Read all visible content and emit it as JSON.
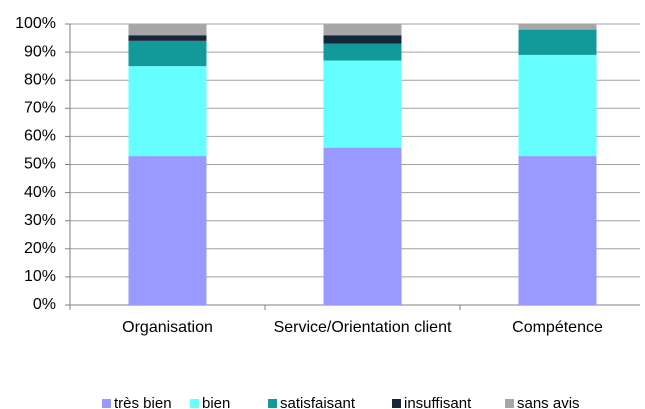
{
  "chart_data": {
    "type": "stacked_bar",
    "categories": [
      "Organisation",
      "Service/Orientation client",
      "Compétence"
    ],
    "series": [
      {
        "name": "très bien",
        "color": "#9999ff",
        "values": [
          53,
          56,
          53
        ]
      },
      {
        "name": "bien",
        "color": "#66ffff",
        "values": [
          32,
          31,
          36
        ]
      },
      {
        "name": "satisfaisant",
        "color": "#129999",
        "values": [
          9,
          6,
          9
        ]
      },
      {
        "name": "insuffisant",
        "color": "#14263a",
        "values": [
          2,
          3,
          0
        ]
      },
      {
        "name": "sans avis",
        "color": "#a6a6a6",
        "values": [
          4,
          4,
          2
        ]
      }
    ],
    "ylim": [
      0,
      100
    ],
    "yticks": [
      {
        "value": 0,
        "label": "0%"
      },
      {
        "value": 10,
        "label": "10%"
      },
      {
        "value": 20,
        "label": "20%"
      },
      {
        "value": 30,
        "label": "30%"
      },
      {
        "value": 40,
        "label": "40%"
      },
      {
        "value": 50,
        "label": "50%"
      },
      {
        "value": 60,
        "label": "60%"
      },
      {
        "value": 70,
        "label": "70%"
      },
      {
        "value": 80,
        "label": "80%"
      },
      {
        "value": 90,
        "label": "90%"
      },
      {
        "value": 100,
        "label": "100%"
      }
    ],
    "grid": true,
    "legend": "bottom"
  }
}
